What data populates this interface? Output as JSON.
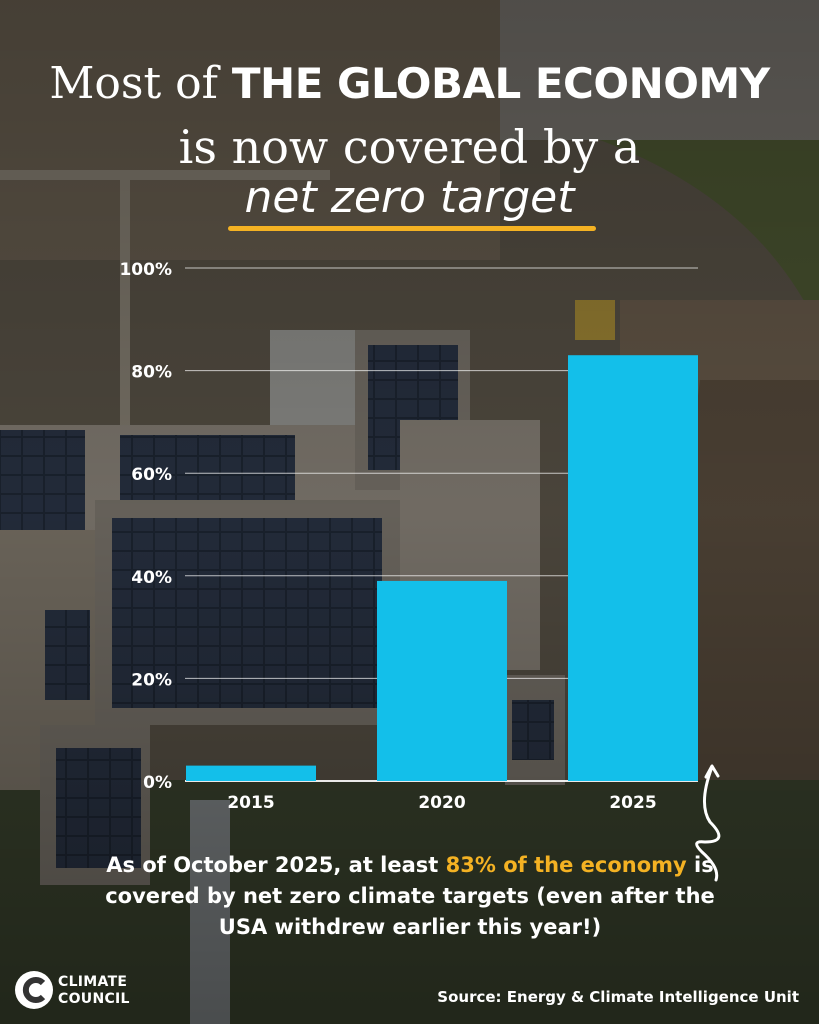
{
  "headline": {
    "line1_prefix": "Most of ",
    "line1_emphasis": "THE GLOBAL ECONOMY",
    "line2": "is now covered by a",
    "line3": "net zero target"
  },
  "chart_data": {
    "type": "bar",
    "categories": [
      "2015",
      "2020",
      "2025"
    ],
    "values": [
      3,
      39,
      83
    ],
    "ylim": [
      0,
      100
    ],
    "yticks": [
      0,
      20,
      40,
      60,
      80,
      100
    ],
    "ytick_labels": [
      "0%",
      "20%",
      "40%",
      "60%",
      "80%",
      "100%"
    ],
    "bar_color": "#13bfea",
    "grid": "horizontal"
  },
  "callout": {
    "text_before": "As of October 2025, at least ",
    "highlight": "83% of the economy",
    "text_after": " is covered by net zero climate targets (even after the USA withdrew earlier this year!)"
  },
  "colors": {
    "accent": "#f4b223",
    "bar": "#13bfea"
  },
  "logo": {
    "line1": "CLIMATE",
    "line2": "COUNCIL"
  },
  "source": "Source: Energy & Climate Intelligence Unit"
}
